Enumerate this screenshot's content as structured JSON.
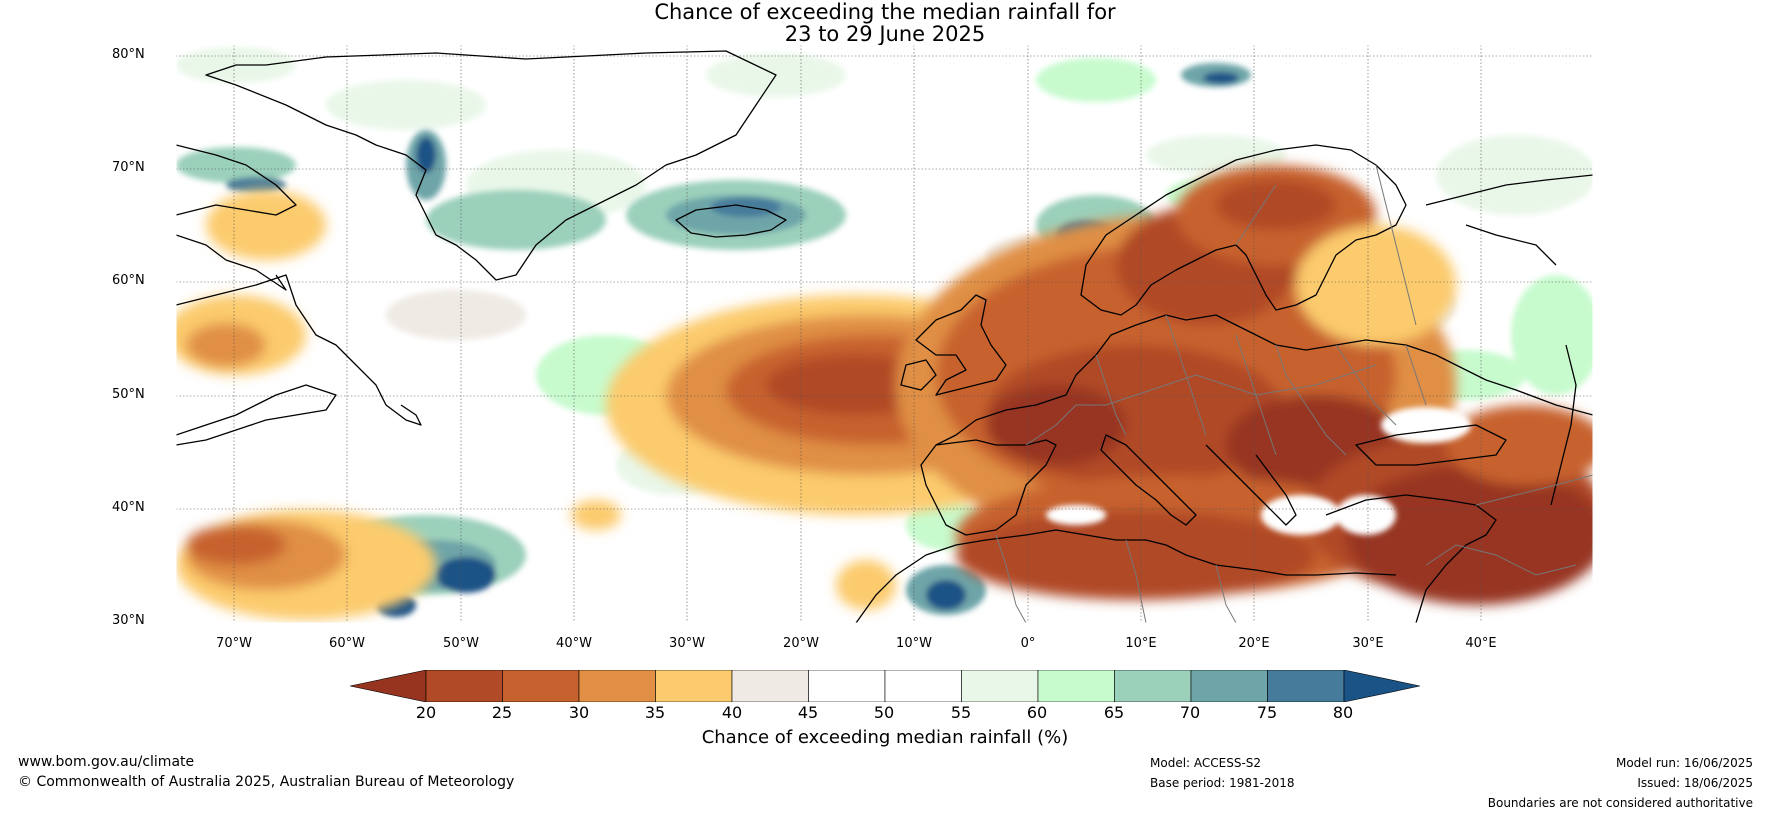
{
  "title": {
    "line1": "Chance of exceeding the median rainfall for",
    "line2": "23 to 29 June 2025"
  },
  "lat_labels": [
    "80°N",
    "70°N",
    "60°N",
    "50°N",
    "40°N",
    "30°N"
  ],
  "lon_labels": [
    "70°W",
    "60°W",
    "50°W",
    "40°W",
    "30°W",
    "20°W",
    "10°W",
    "0°",
    "10°E",
    "20°E",
    "30°E",
    "40°E"
  ],
  "colorbar": {
    "title": "Chance of exceeding median rainfall (%)",
    "ticks": [
      "20",
      "25",
      "30",
      "35",
      "40",
      "45",
      "50",
      "55",
      "60",
      "65",
      "70",
      "75",
      "80"
    ],
    "colors": [
      "#973420",
      "#b04a27",
      "#c7622e",
      "#e08f44",
      "#fccb6d",
      "#efeae4",
      "#ffffff",
      "#ffffff",
      "#e9f7e9",
      "#c7fbce",
      "#9bd0bb",
      "#6ea5a9",
      "#467b9b",
      "#1a5386"
    ]
  },
  "footer": {
    "website": "www.bom.gov.au/climate",
    "copyright": "© Commonwealth of Australia 2025, Australian Bureau of Meteorology",
    "model": "Model: ACCESS-S2",
    "base_period": "Base period: 1981-2018",
    "model_run": "Model run: 16/06/2025",
    "issued": "Issued: 18/06/2025",
    "disclaimer": "Boundaries are not considered authoritative"
  }
}
